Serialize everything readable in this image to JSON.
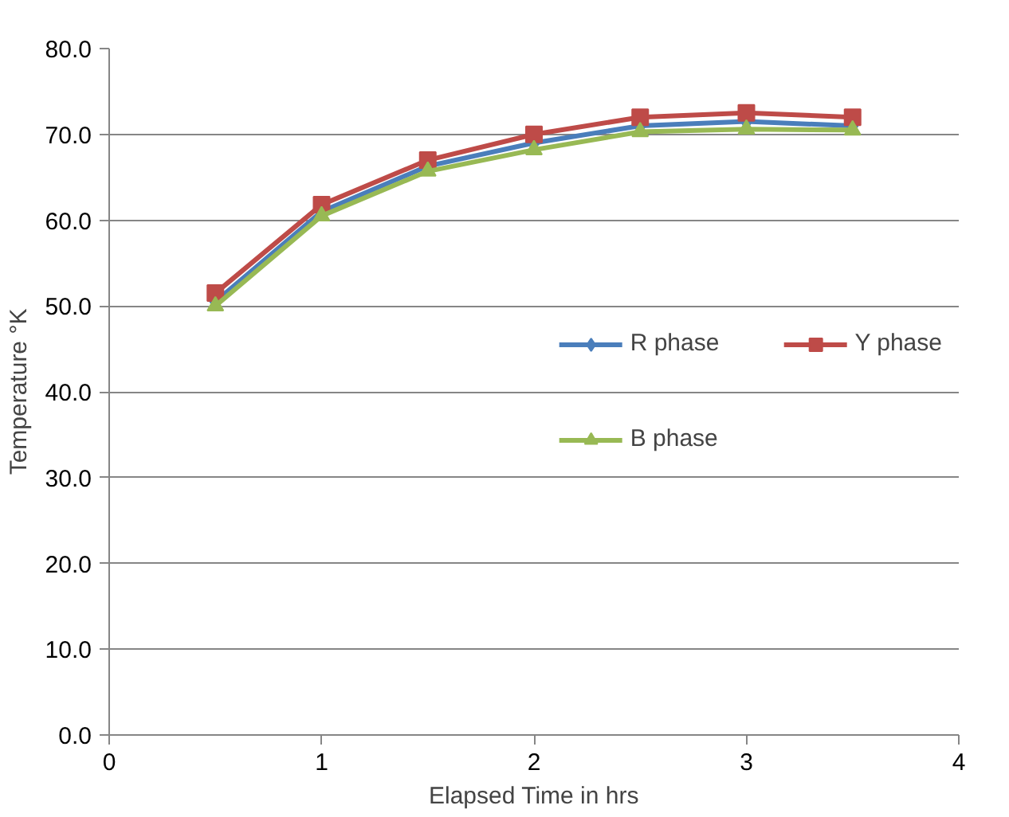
{
  "chart_data": {
    "type": "line",
    "xlabel": "Elapsed Time in hrs",
    "ylabel": "Temperature °K",
    "x": [
      0.5,
      1,
      1.5,
      2,
      2.5,
      3,
      3.5
    ],
    "xlim": [
      0,
      4
    ],
    "xticks": [
      0,
      1,
      2,
      3,
      4
    ],
    "ylim": [
      0,
      80
    ],
    "yticks": [
      {
        "value": 0,
        "label": "0.0"
      },
      {
        "value": 10,
        "label": "10.0"
      },
      {
        "value": 20,
        "label": "20.0"
      },
      {
        "value": 30,
        "label": "30.0"
      },
      {
        "value": 40,
        "label": "40.0"
      },
      {
        "value": 50,
        "label": "50.0"
      },
      {
        "value": 60,
        "label": "60.0"
      },
      {
        "value": 70,
        "label": "70.0"
      },
      {
        "value": 80,
        "label": "80.0"
      }
    ],
    "grid": "y",
    "legend": "center right",
    "line_style": "solid",
    "series": [
      {
        "name": "R phase",
        "color": "#4a7ebb",
        "marker": "diamond",
        "values": [
          50.5,
          61,
          66.3,
          69,
          71,
          71.5,
          71
        ]
      },
      {
        "name": "Y phase",
        "color": "#be4b48",
        "marker": "square",
        "values": [
          51.5,
          61.8,
          67,
          70,
          72,
          72.5,
          72
        ]
      },
      {
        "name": "B phase",
        "color": "#98b954",
        "marker": "triangle",
        "values": [
          50,
          60.5,
          65.7,
          68.2,
          70.3,
          70.6,
          70.5
        ]
      }
    ]
  }
}
